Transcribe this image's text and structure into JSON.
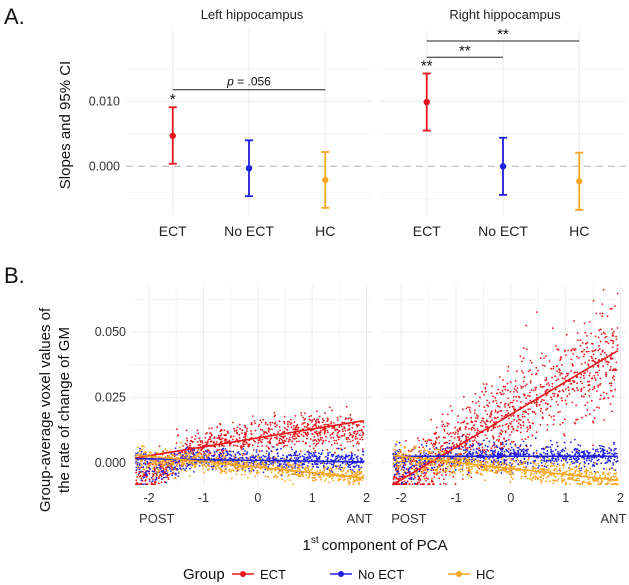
{
  "panel_a_label": "A.",
  "panel_b_label": "B.",
  "colors": {
    "ECT": "#e8151b",
    "No ECT": "#1f1fe0",
    "HC": "#f5a623",
    "zero_line": "#c8c8c8",
    "grid": "#ebebeb"
  },
  "legend": {
    "title": "Group",
    "items": [
      "ECT",
      "No ECT",
      "HC"
    ]
  },
  "chart_data": [
    {
      "type": "errorbar",
      "panel": "A",
      "ylabel": "Slopes and 95% CI",
      "yticks": [
        0.0,
        0.01
      ],
      "ytick_labels": [
        "0.000",
        "0.010"
      ],
      "ylim": [
        -0.0075,
        0.021
      ],
      "categories": [
        "ECT",
        "No ECT",
        "HC"
      ],
      "facets": [
        {
          "title": "Left hippocampus",
          "points": [
            {
              "group": "ECT",
              "estimate": 0.0047,
              "lower": 0.0004,
              "upper": 0.0091
            },
            {
              "group": "No ECT",
              "estimate": -0.0003,
              "lower": -0.0046,
              "upper": 0.004
            },
            {
              "group": "HC",
              "estimate": -0.0021,
              "lower": -0.0064,
              "upper": 0.0022
            }
          ],
          "annotations": [
            {
              "type": "star",
              "group": "ECT",
              "text": "*"
            },
            {
              "type": "bracket",
              "from": "ECT",
              "to": "HC",
              "y": 0.0118,
              "text_prefix": "p",
              "text_value": " = .056"
            }
          ]
        },
        {
          "title": "Right hippocampus",
          "points": [
            {
              "group": "ECT",
              "estimate": 0.0099,
              "lower": 0.0055,
              "upper": 0.0143
            },
            {
              "group": "No ECT",
              "estimate": 0.0,
              "lower": -0.0044,
              "upper": 0.0044
            },
            {
              "group": "HC",
              "estimate": -0.0023,
              "lower": -0.0067,
              "upper": 0.0021
            }
          ],
          "annotations": [
            {
              "type": "star",
              "group": "ECT",
              "text": "**"
            },
            {
              "type": "bracket",
              "from": "ECT",
              "to": "No ECT",
              "y": 0.0168,
              "text": "**"
            },
            {
              "type": "bracket",
              "from": "ECT",
              "to": "HC",
              "y": 0.0193,
              "text": "**"
            }
          ]
        }
      ]
    },
    {
      "type": "scatter",
      "panel": "B",
      "ylabel_line1": "Group-average voxel values of",
      "ylabel_line2": "the rate of change of GM",
      "xlabel_prefix": "1",
      "xlabel_sup": "st",
      "xlabel_rest": "component of PCA",
      "xticks": [
        -2,
        -1,
        0,
        1,
        2
      ],
      "xtick_labels": [
        "-2",
        "-1",
        "0",
        "1",
        "2"
      ],
      "x_end_labels": [
        "POST",
        "ANT"
      ],
      "xlim": [
        -2.35,
        2.1
      ],
      "yticks": [
        0.0,
        0.025,
        0.05
      ],
      "ytick_labels": [
        "0.000",
        "0.025",
        "0.050"
      ],
      "ylim": [
        -0.0085,
        0.068
      ],
      "facets": [
        {
          "title": "Left hippocampus",
          "series": [
            {
              "name": "ECT",
              "fit": {
                "intercept": 0.0098,
                "slope": 0.0047
              },
              "x_range": [
                -2.25,
                1.95
              ],
              "spread": 0.0075,
              "n": 900
            },
            {
              "name": "No ECT",
              "fit": {
                "intercept": 0.0009,
                "slope": -0.0003
              },
              "x_range": [
                -2.25,
                1.95
              ],
              "spread": 0.0035,
              "n": 800
            },
            {
              "name": "HC",
              "fit": {
                "intercept": -0.0017,
                "slope": -0.0021
              },
              "x_range": [
                -2.25,
                1.95
              ],
              "spread": 0.0032,
              "n": 800
            }
          ]
        },
        {
          "title": "Right hippocampus",
          "series": [
            {
              "name": "ECT",
              "fit": {
                "intercept": 0.0245,
                "slope": 0.0099
              },
              "x_range": [
                -2.15,
                1.95
              ],
              "spread": 0.013,
              "n": 1200
            },
            {
              "name": "No ECT",
              "fit": {
                "intercept": 0.0025,
                "slope": 0.0
              },
              "x_range": [
                -2.15,
                1.95
              ],
              "spread": 0.0042,
              "n": 800
            },
            {
              "name": "HC",
              "fit": {
                "intercept": -0.0022,
                "slope": -0.0023
              },
              "x_range": [
                -2.15,
                1.95
              ],
              "spread": 0.0038,
              "n": 800
            }
          ]
        }
      ]
    }
  ]
}
